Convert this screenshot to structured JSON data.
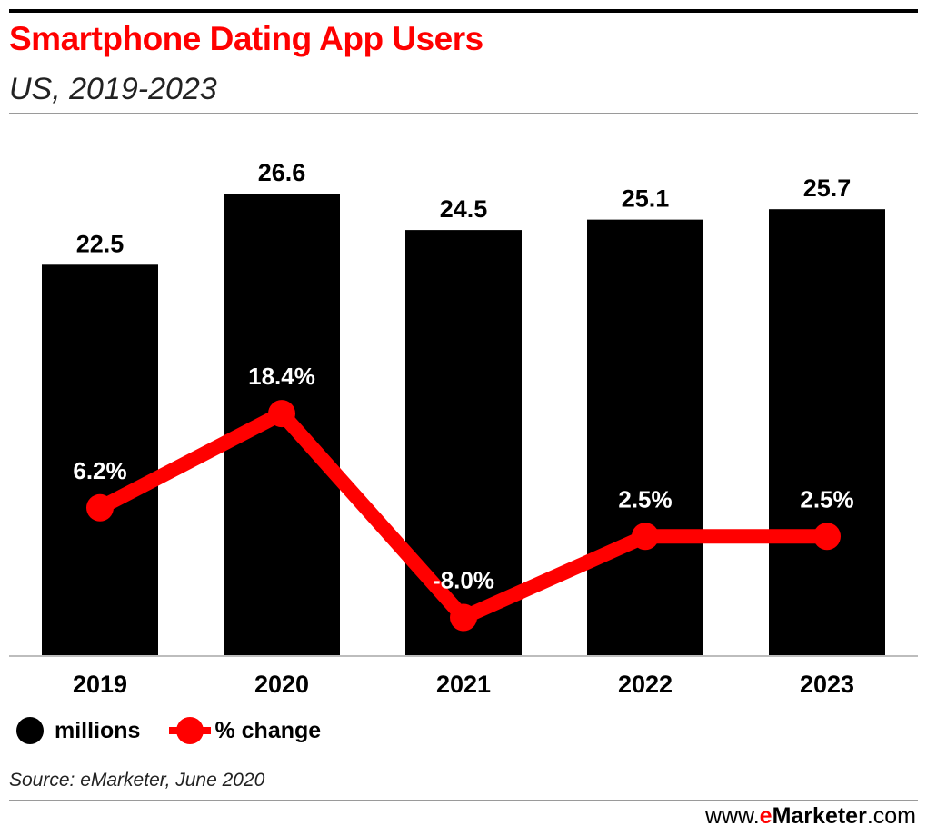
{
  "header": {
    "title": "Smartphone Dating App Users",
    "subtitle": "US, 2019-2023"
  },
  "colors": {
    "title": "#ff0000",
    "bars": "#000000",
    "line": "#ff0000"
  },
  "chart_data": {
    "type": "bar",
    "categories": [
      "2019",
      "2020",
      "2021",
      "2022",
      "2023"
    ],
    "series": [
      {
        "name": "millions",
        "type": "bar",
        "values": [
          22.5,
          26.6,
          24.5,
          25.1,
          25.7
        ],
        "labels": [
          "22.5",
          "26.6",
          "24.5",
          "25.1",
          "25.7"
        ]
      },
      {
        "name": "% change",
        "type": "line",
        "values": [
          6.2,
          18.4,
          -8.0,
          2.5,
          2.5
        ],
        "labels": [
          "6.2%",
          "18.4%",
          "-8.0%",
          "2.5%",
          "2.5%"
        ]
      }
    ],
    "legend": "bottom-left",
    "grid": false
  },
  "legend": {
    "items": [
      {
        "label": "millions",
        "color": "#000000"
      },
      {
        "label": "% change",
        "color": "#ff0000"
      }
    ]
  },
  "footer": {
    "source": "Source: eMarketer, June 2020",
    "brand_prefix": "www.",
    "brand_e": "e",
    "brand_name": "Marketer",
    "brand_suffix": ".com"
  }
}
